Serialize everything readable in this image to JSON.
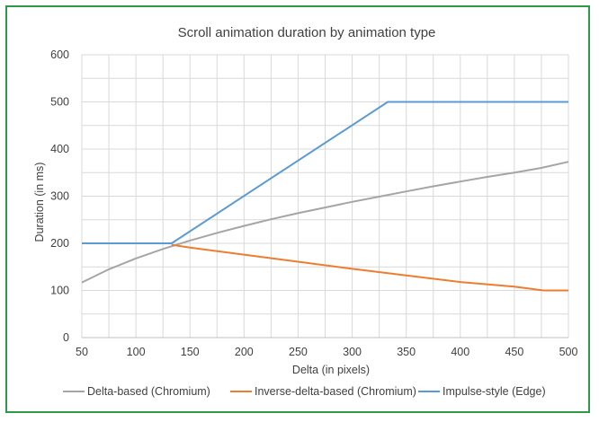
{
  "chart_data": {
    "type": "line",
    "title": "Scroll animation duration by animation type",
    "xlabel": "Delta (in pixels)",
    "ylabel": "Duration (in ms)",
    "xlim": [
      50,
      500
    ],
    "ylim": [
      0,
      600
    ],
    "x_ticks": [
      50,
      100,
      150,
      200,
      250,
      300,
      350,
      400,
      450,
      500
    ],
    "y_ticks": [
      0,
      100,
      200,
      300,
      400,
      500,
      600
    ],
    "grid": true,
    "legend_position": "bottom",
    "series": [
      {
        "name": "Delta-based (Chromium)",
        "color": "#a5a5a5",
        "points": [
          [
            50,
            117
          ],
          [
            75,
            145
          ],
          [
            100,
            168
          ],
          [
            125,
            188
          ],
          [
            150,
            206
          ],
          [
            175,
            222
          ],
          [
            200,
            237
          ],
          [
            225,
            251
          ],
          [
            250,
            264
          ],
          [
            275,
            276
          ],
          [
            300,
            288
          ],
          [
            325,
            299
          ],
          [
            350,
            310
          ],
          [
            375,
            321
          ],
          [
            400,
            331
          ],
          [
            425,
            341
          ],
          [
            450,
            350
          ],
          [
            475,
            360
          ],
          [
            500,
            373
          ]
        ]
      },
      {
        "name": "Inverse-delta-based (Chromium)",
        "color": "#ed7d31",
        "points": [
          [
            133,
            197
          ],
          [
            150,
            191
          ],
          [
            200,
            176
          ],
          [
            250,
            161
          ],
          [
            300,
            146
          ],
          [
            350,
            132
          ],
          [
            400,
            118
          ],
          [
            450,
            108
          ],
          [
            477,
            100
          ],
          [
            500,
            100
          ]
        ]
      },
      {
        "name": "Impulse-style (Edge)",
        "color": "#5b9bd5",
        "points": [
          [
            50,
            200
          ],
          [
            133,
            200
          ],
          [
            333,
            500
          ],
          [
            500,
            500
          ]
        ]
      }
    ]
  }
}
